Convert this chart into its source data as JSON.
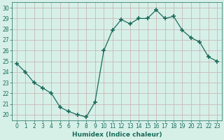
{
  "x": [
    0,
    1,
    2,
    3,
    4,
    5,
    6,
    7,
    8,
    9,
    10,
    11,
    12,
    13,
    14,
    15,
    16,
    17,
    18,
    19,
    20,
    21,
    22,
    23
  ],
  "y": [
    24.8,
    24.0,
    23.0,
    22.5,
    22.0,
    20.7,
    20.3,
    20.0,
    19.8,
    21.2,
    26.0,
    27.9,
    28.9,
    28.5,
    29.0,
    29.0,
    29.8,
    29.0,
    29.2,
    27.9,
    27.2,
    26.8,
    25.4,
    25.0
  ],
  "line_color": "#1a6b5a",
  "marker": "+",
  "marker_size": 4,
  "bg_color": "#d6f0e8",
  "grid_color": "#c8b8b8",
  "xlabel": "Humidex (Indice chaleur)",
  "xlim": [
    -0.5,
    23.5
  ],
  "ylim": [
    19.5,
    30.5
  ],
  "xticks": [
    0,
    1,
    2,
    3,
    4,
    5,
    6,
    7,
    8,
    9,
    10,
    11,
    12,
    13,
    14,
    15,
    16,
    17,
    18,
    19,
    20,
    21,
    22,
    23
  ],
  "yticks": [
    20,
    21,
    22,
    23,
    24,
    25,
    26,
    27,
    28,
    29,
    30
  ],
  "axis_fontsize": 5.5,
  "label_fontsize": 6.5
}
